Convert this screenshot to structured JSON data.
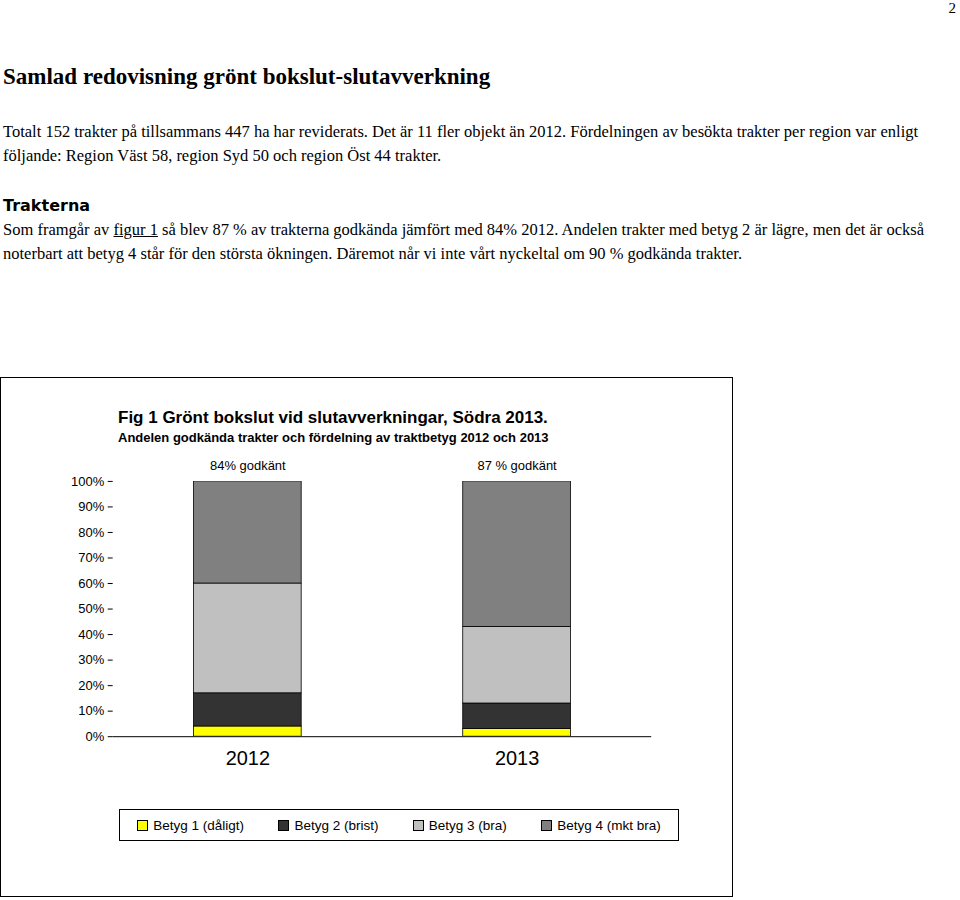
{
  "page_number": "2",
  "heading": "Samlad redovisning grönt bokslut-slutavverkning",
  "intro": "Totalt 152 trakter på tillsammans 447 ha har reviderats. Det är 11 fler objekt än 2012. Fördelningen av besökta trakter per region var enligt följande: Region Väst 58, region Syd 50 och region Öst 44 trakter.",
  "section": {
    "title": "Trakterna",
    "text_before": "Som framgår av ",
    "link": "figur 1",
    "text_after": " så blev 87 % av trakterna godkända jämfört med 84% 2012. Andelen trakter med betyg 2 är lägre, men det är också noterbart att betyg 4 står för den största ökningen. Däremot når vi inte vårt nyckeltal om 90 % godkända trakter."
  },
  "chart_data": {
    "type": "bar",
    "stacked": true,
    "title": "Fig 1 Grönt bokslut vid slutavverkningar, Södra 2013.",
    "subtitle": "Andelen godkända trakter och fördelning av traktbetyg 2012 och 2013",
    "categories": [
      "2012",
      "2013"
    ],
    "series": [
      {
        "name": "Betyg 1 (dåligt)",
        "color": "#ffff00",
        "values": [
          4,
          3
        ]
      },
      {
        "name": "Betyg 2 (brist)",
        "color": "#333333",
        "values": [
          13,
          10
        ]
      },
      {
        "name": "Betyg 3 (bra)",
        "color": "#c0c0c0",
        "values": [
          43,
          30
        ]
      },
      {
        "name": "Betyg 4 (mkt bra)",
        "color": "#808080",
        "values": [
          40,
          57
        ]
      }
    ],
    "annotations": [
      {
        "category": "2012",
        "text": "84% godkänt"
      },
      {
        "category": "2013",
        "text": "87 % godkänt"
      }
    ],
    "ylim": [
      0,
      100
    ],
    "yticks": [
      {
        "value": 0,
        "label": "0%"
      },
      {
        "value": 10,
        "label": "10%"
      },
      {
        "value": 20,
        "label": "20%"
      },
      {
        "value": 30,
        "label": "30%"
      },
      {
        "value": 40,
        "label": "40%"
      },
      {
        "value": 50,
        "label": "50%"
      },
      {
        "value": 60,
        "label": "60%"
      },
      {
        "value": 70,
        "label": "70%"
      },
      {
        "value": 80,
        "label": "80%"
      },
      {
        "value": 90,
        "label": "90%"
      },
      {
        "value": 100,
        "label": "100%"
      }
    ],
    "grid": false,
    "legend": "bottom"
  }
}
